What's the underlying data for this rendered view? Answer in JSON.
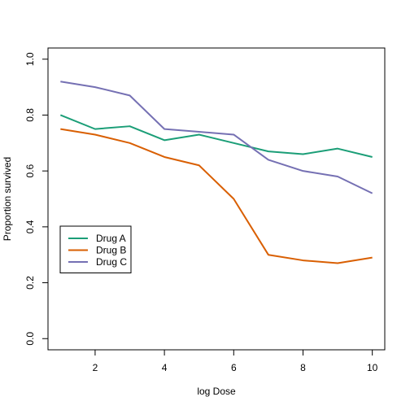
{
  "chart_data": {
    "type": "line",
    "title": "",
    "xlabel": "log Dose",
    "ylabel": "Proportion survived",
    "x": [
      1,
      2,
      3,
      4,
      5,
      6,
      7,
      8,
      9,
      10
    ],
    "xlim": [
      1,
      10
    ],
    "ylim": [
      0,
      1
    ],
    "x_ticks": [
      2,
      4,
      6,
      8,
      10
    ],
    "y_ticks": [
      0.0,
      0.2,
      0.4,
      0.6,
      0.8,
      1.0
    ],
    "x_tick_labels": [
      "2",
      "4",
      "6",
      "8",
      "10"
    ],
    "y_tick_labels": [
      "0.0",
      "0.2",
      "0.4",
      "0.6",
      "0.8",
      "1.0"
    ],
    "grid": false,
    "legend_position": "bottom-left",
    "series": [
      {
        "name": "Drug A",
        "color": "#1b9e77",
        "values": [
          0.8,
          0.75,
          0.76,
          0.71,
          0.73,
          0.7,
          0.67,
          0.66,
          0.68,
          0.65
        ]
      },
      {
        "name": "Drug B",
        "color": "#d95f02",
        "values": [
          0.75,
          0.73,
          0.7,
          0.65,
          0.62,
          0.5,
          0.3,
          0.28,
          0.27,
          0.29
        ]
      },
      {
        "name": "Drug C",
        "color": "#7570b3",
        "values": [
          0.92,
          0.9,
          0.87,
          0.75,
          0.74,
          0.73,
          0.64,
          0.6,
          0.58,
          0.52
        ]
      }
    ]
  }
}
